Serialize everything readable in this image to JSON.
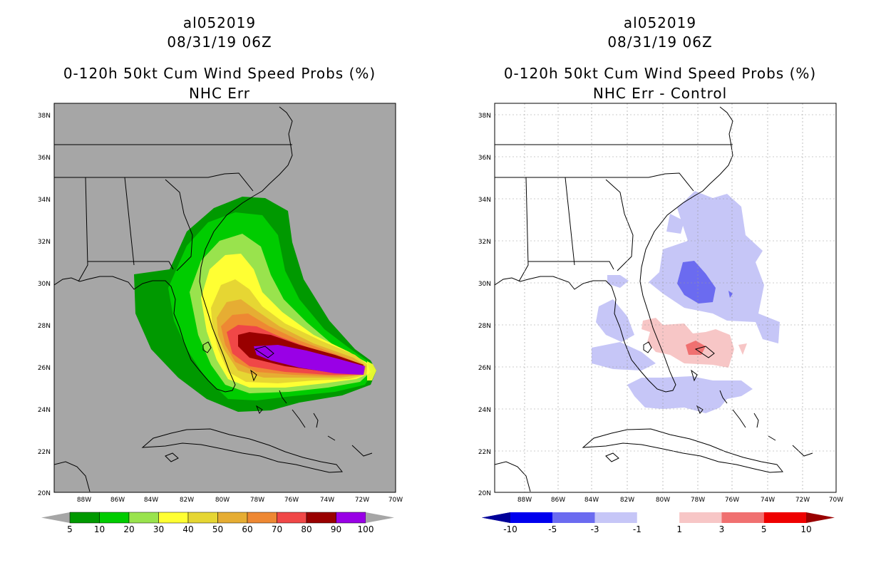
{
  "left": {
    "storm": "al052019",
    "datetime": "08/31/19 06Z",
    "product": "0-120h 50kt Cum Wind Speed Probs (%)",
    "subtitle": "NHC Err",
    "background": "#a6a6a6",
    "colorbar": {
      "colors": [
        "#009900",
        "#00cc00",
        "#99e34d",
        "#ffff33",
        "#e6d633",
        "#e6ad33",
        "#ee8833",
        "#f04747",
        "#990000",
        "#9900e6"
      ],
      "labels": [
        "5",
        "10",
        "20",
        "30",
        "40",
        "50",
        "60",
        "70",
        "80",
        "90",
        "100"
      ]
    }
  },
  "right": {
    "storm": "al052019",
    "datetime": "08/31/19 06Z",
    "product": "0-120h 50kt Cum Wind Speed Probs (%)",
    "subtitle": "NHC Err - Control",
    "background": "#ffffff",
    "colorbar": {
      "colors": [
        "#000099",
        "#0000ee",
        "#6b6bf0",
        "#c6c6f7",
        "#ffffff",
        "#f7c6c6",
        "#f07070",
        "#ee0000",
        "#990000"
      ],
      "labels": [
        "-10",
        "-5",
        "-3",
        "-1",
        "1",
        "3",
        "5",
        "10"
      ]
    }
  },
  "axes": {
    "lat_labels": [
      "38N",
      "36N",
      "34N",
      "32N",
      "30N",
      "28N",
      "26N",
      "24N",
      "22N",
      "20N"
    ],
    "lon_labels": [
      "88W",
      "86W",
      "84W",
      "82W",
      "80W",
      "78W",
      "76W",
      "74W",
      "72W",
      "70W"
    ]
  }
}
